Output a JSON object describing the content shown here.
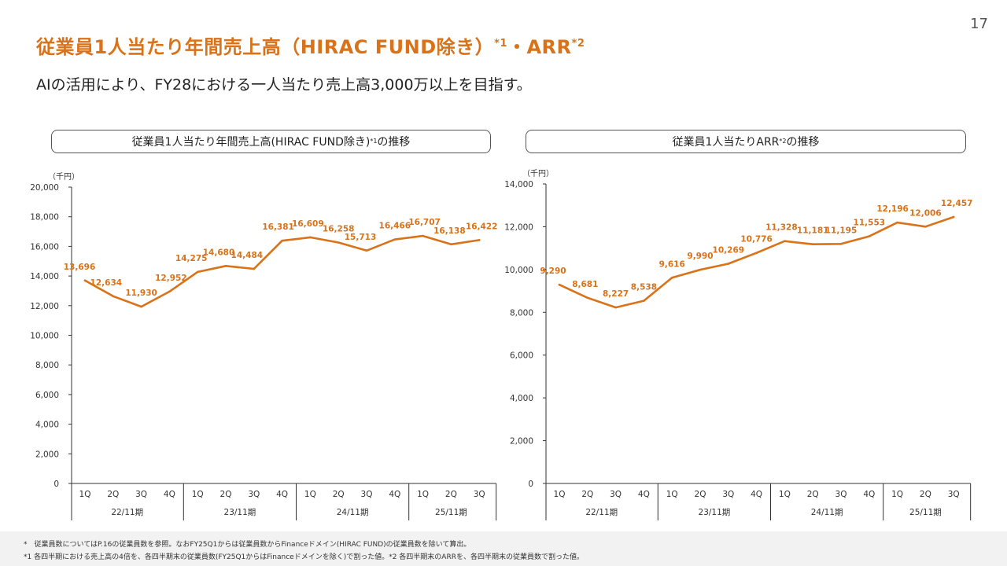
{
  "page_number": "17",
  "title": {
    "main": "従業員1人当たり年間売上高（HIRAC FUND除き）",
    "sup1": "*1",
    "mid": "・ARR",
    "sup2": "*2"
  },
  "subtitle": "AIの活用により、FY28における一人当たり売上高3,000万以上を目指す。",
  "colors": {
    "accent": "#d97218",
    "axis": "#333333"
  },
  "footnotes": [
    "*　従業員数についてはP.16の従業員数を参照。なおFY25Q1からは従業員数からFinanceドメイン(HIRAC FUND)の従業員数を除いて算出。",
    "*1 各四半期における売上高の4倍を、各四半期末の従業員数(FY25Q1からはFinanceドメインを除く)で割った値。*2 各四半期末のARRを、各四半期末の従業員数で割った値。"
  ],
  "chart_data": [
    {
      "type": "line",
      "box_title": "従業員1人当たり年間売上高(HIRAC FUND除き)",
      "box_title_sup": "*1",
      "box_title_suffix": "の推移",
      "unit_label": "（千円）",
      "ylim": [
        0,
        20000
      ],
      "yticks": [
        "20,000",
        "18,000",
        "16,000",
        "14,000",
        "12,000",
        "10,000",
        "8,000",
        "6,000",
        "4,000",
        "2,000",
        "0"
      ],
      "ytick_values": [
        20000,
        18000,
        16000,
        14000,
        12000,
        10000,
        8000,
        6000,
        4000,
        2000,
        0
      ],
      "categories": [
        "1Q",
        "2Q",
        "3Q",
        "4Q",
        "1Q",
        "2Q",
        "3Q",
        "4Q",
        "1Q",
        "2Q",
        "3Q",
        "4Q",
        "1Q",
        "2Q",
        "3Q"
      ],
      "groups": [
        {
          "label": "22/11期",
          "count": 4
        },
        {
          "label": "23/11期",
          "count": 4
        },
        {
          "label": "24/11期",
          "count": 4
        },
        {
          "label": "25/11期",
          "count": 3
        }
      ],
      "values": [
        13696,
        12634,
        11930,
        12952,
        14275,
        14680,
        14484,
        16381,
        16609,
        16258,
        15713,
        16466,
        16707,
        16138,
        16422
      ],
      "labels": [
        "13,696",
        "12,634",
        "11,930",
        "12,952",
        "14,275",
        "14,680",
        "14,484",
        "16,381",
        "16,609",
        "16,258",
        "15,713",
        "16,466",
        "16,707",
        "16,138",
        "16,422"
      ]
    },
    {
      "type": "line",
      "box_title": "従業員1人当たりARR",
      "box_title_sup": "*2",
      "box_title_suffix": "の推移",
      "unit_label": "（千円）",
      "ylim": [
        0,
        14000
      ],
      "yticks": [
        "14,000",
        "12,000",
        "10,000",
        "8,000",
        "6,000",
        "4,000",
        "2,000",
        "0"
      ],
      "ytick_values": [
        14000,
        12000,
        10000,
        8000,
        6000,
        4000,
        2000,
        0
      ],
      "categories": [
        "1Q",
        "2Q",
        "3Q",
        "4Q",
        "1Q",
        "2Q",
        "3Q",
        "4Q",
        "1Q",
        "2Q",
        "3Q",
        "4Q",
        "1Q",
        "2Q",
        "3Q"
      ],
      "groups": [
        {
          "label": "22/11期",
          "count": 4
        },
        {
          "label": "23/11期",
          "count": 4
        },
        {
          "label": "24/11期",
          "count": 4
        },
        {
          "label": "25/11期",
          "count": 3
        }
      ],
      "values": [
        9290,
        8681,
        8227,
        8538,
        9616,
        9990,
        10269,
        10776,
        11328,
        11181,
        11195,
        11553,
        12196,
        12006,
        12457
      ],
      "labels": [
        "9,290",
        "8,681",
        "8,227",
        "8,538",
        "9,616",
        "9,990",
        "10,269",
        "10,776",
        "11,328",
        "11,181",
        "11,195",
        "11,553",
        "12,196",
        "12,006",
        "12,457"
      ]
    }
  ]
}
